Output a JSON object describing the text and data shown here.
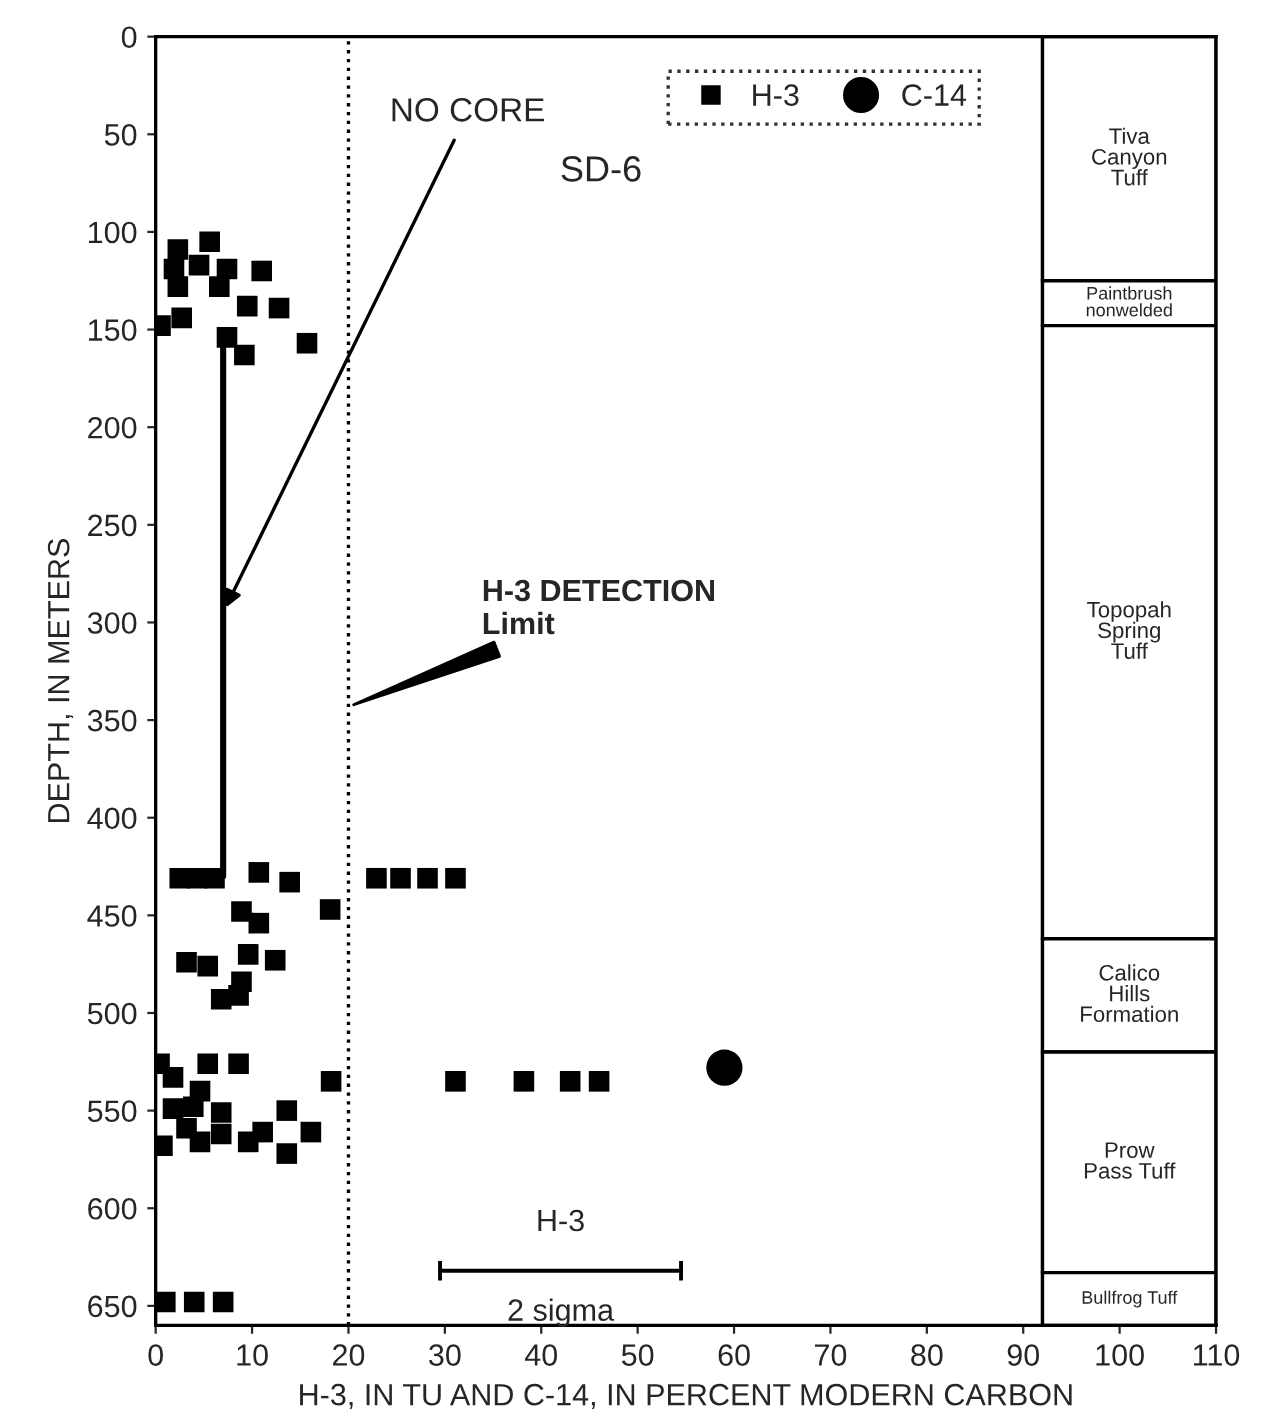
{
  "chart_data": {
    "type": "scatter",
    "xlabel": "H-3, IN TU AND C-14, IN PERCENT MODERN CARBON",
    "ylabel": "DEPTH, IN METERS",
    "xlim": [
      0,
      110
    ],
    "xticks": [
      0,
      10,
      20,
      30,
      40,
      50,
      60,
      70,
      80,
      90,
      100,
      110
    ],
    "ylim": [
      660,
      0
    ],
    "yticks": [
      0,
      50,
      100,
      150,
      200,
      250,
      300,
      350,
      400,
      450,
      500,
      550,
      600,
      650
    ],
    "grid": false,
    "legend": "top",
    "series": [
      {
        "name": "H-3",
        "marker": "square",
        "color": "#000000",
        "x": [
          5.6,
          2.3,
          1.9,
          4.5,
          7.4,
          11.0,
          2.3,
          6.6,
          9.5,
          12.8,
          0.5,
          2.7,
          7.4,
          9.2,
          15.7,
          2.5,
          4.3,
          6.1,
          10.7,
          13.9,
          22.9,
          25.4,
          28.2,
          31.1,
          8.9,
          10.7,
          18.1,
          3.2,
          5.4,
          9.6,
          12.4,
          8.9,
          6.8,
          8.6,
          0.4,
          5.4,
          8.6,
          18.2,
          31.1,
          38.2,
          43.0,
          46.0,
          1.8,
          4.6,
          1.8,
          3.9,
          6.8,
          3.2,
          0.7,
          4.6,
          6.8,
          9.6,
          13.6,
          16.1,
          11.1,
          13.6,
          1.0,
          4.0,
          7.0
        ],
        "values": [
          105,
          109,
          119,
          117,
          119,
          120,
          128,
          128,
          138,
          139,
          148,
          144,
          154,
          163,
          157,
          431,
          431,
          431,
          428,
          433,
          431,
          431,
          431,
          431,
          448,
          454,
          447,
          474,
          476,
          470,
          473,
          484,
          493,
          491,
          526,
          526,
          526,
          535,
          535,
          535,
          535,
          535,
          533,
          540,
          549,
          548,
          551,
          559,
          568,
          566,
          562,
          566,
          550,
          561,
          561,
          572,
          648,
          648,
          648
        ]
      },
      {
        "name": "C-14",
        "marker": "circle",
        "color": "#000000",
        "x": [
          59
        ],
        "values": [
          528
        ]
      },
      {
        "type": "line",
        "line_style": "solid",
        "marker": "none",
        "color": "#000000",
        "x": [
          7,
          7
        ],
        "values": [
          160,
          430
        ]
      },
      {
        "type": "line",
        "line_style": "solid",
        "marker": "none",
        "color": "#000000",
        "x": [
          29.5,
          54.5
        ],
        "values": [
          632,
          632
        ],
        "errors": [
          5,
          5
        ]
      }
    ],
    "ref_lines": [
      {
        "axis": "x",
        "value": 20,
        "label": "H-3 DETECTION\nLimit",
        "line_style": "dotted",
        "color": "#000000"
      },
      {
        "axis": "x",
        "value": 92,
        "line_style": "solid",
        "color": "#000000"
      }
    ],
    "bands": [
      {
        "axis": "y",
        "from": 0,
        "to": 125,
        "label": "Tiva\nCanyon\nTuff"
      },
      {
        "axis": "y",
        "from": 125,
        "to": 148,
        "label": "Paintbrush\nnonwelded"
      },
      {
        "axis": "y",
        "from": 148,
        "to": 462,
        "label": "Topopah\nSpring\nTuff"
      },
      {
        "axis": "y",
        "from": 462,
        "to": 520,
        "label": "Calico\nHills\nFormation"
      },
      {
        "axis": "y",
        "from": 520,
        "to": 633,
        "label": "Prow\nPass Tuff"
      },
      {
        "axis": "y",
        "from": 633,
        "to": 660,
        "label": "Bullfrog Tuff"
      }
    ],
    "annotations": [
      "SD-6",
      "NO CORE",
      "H-3",
      "2 sigma"
    ]
  }
}
